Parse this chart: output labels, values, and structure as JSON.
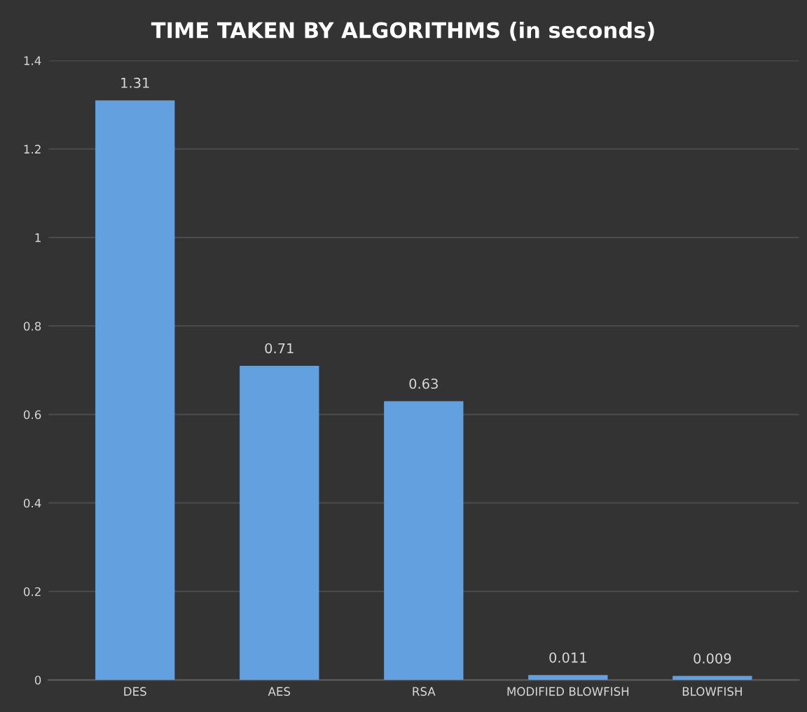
{
  "chart_data": {
    "type": "bar",
    "title": "TIME TAKEN BY ALGORITHMS (in seconds)",
    "categories": [
      "DES",
      "AES",
      "RSA",
      "MODIFIED BLOWFISH",
      "BLOWFISH"
    ],
    "values": [
      1.31,
      0.71,
      0.63,
      0.011,
      0.009
    ],
    "color": "#62a0e0",
    "ylim": [
      0,
      1.4
    ],
    "yticks": [
      0,
      0.2,
      0.4,
      0.6,
      0.8,
      1,
      1.2,
      1.4
    ],
    "grid": "y",
    "data_labels": true
  }
}
